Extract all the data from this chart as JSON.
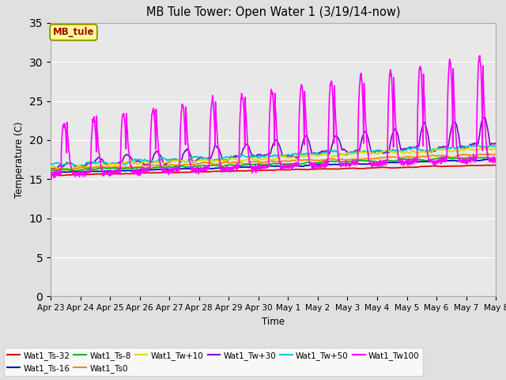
{
  "title": "MB Tule Tower: Open Water 1 (3/19/14-now)",
  "xlabel": "Time",
  "ylabel": "Temperature (C)",
  "ylim": [
    0,
    35
  ],
  "yticks": [
    0,
    5,
    10,
    15,
    20,
    25,
    30,
    35
  ],
  "background_color": "#e0e0e0",
  "plot_bg_color": "#e8e8e8",
  "grid_color": "#ffffff",
  "annotation_text": "MB_tule",
  "annotation_bg": "#ffff99",
  "annotation_border": "#999900",
  "series": {
    "Wat1_Ts-32": {
      "color": "#dd0000",
      "lw": 1.2
    },
    "Wat1_Ts-16": {
      "color": "#0000dd",
      "lw": 1.2
    },
    "Wat1_Ts-8": {
      "color": "#00bb00",
      "lw": 1.2
    },
    "Wat1_Ts0": {
      "color": "#ff8800",
      "lw": 1.2
    },
    "Wat1_Tw+10": {
      "color": "#dddd00",
      "lw": 1.2
    },
    "Wat1_Tw+30": {
      "color": "#8800cc",
      "lw": 1.2
    },
    "Wat1_Tw+50": {
      "color": "#00cccc",
      "lw": 1.2
    },
    "Wat1_Tw100": {
      "color": "#ff00ff",
      "lw": 1.2
    }
  },
  "xstart": 0,
  "xend": 15,
  "xtick_labels": [
    "Apr 23",
    "Apr 24",
    "Apr 25",
    "Apr 26",
    "Apr 27",
    "Apr 28",
    "Apr 29",
    "Apr 30",
    "May 1",
    "May 2",
    "May 3",
    "May 4",
    "May 5",
    "May 6",
    "May 7",
    "May 8"
  ],
  "xtick_positions": [
    0,
    1,
    2,
    3,
    4,
    5,
    6,
    7,
    8,
    9,
    10,
    11,
    12,
    13,
    14,
    15
  ]
}
